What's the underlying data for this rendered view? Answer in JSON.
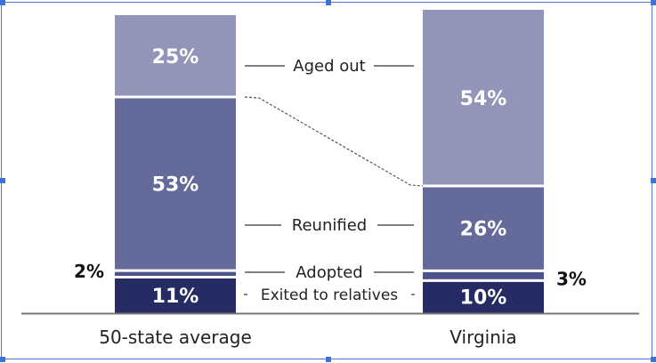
{
  "chart_data": {
    "type": "bar",
    "stacked": true,
    "categories": [
      "50-state average",
      "Virginia"
    ],
    "series": [
      {
        "name": "Exited to relatives",
        "values": [
          11,
          10
        ],
        "color": "#262c63"
      },
      {
        "name": "Adopted",
        "values": [
          2,
          3
        ],
        "color": "#4b548a"
      },
      {
        "name": "Reunified",
        "values": [
          53,
          26
        ],
        "color": "#646a9a"
      },
      {
        "name": "Aged out",
        "values": [
          25,
          54
        ],
        "color": "#9395b8"
      }
    ],
    "data_labels": [
      [
        "11%",
        "2%",
        "53%",
        "25%"
      ],
      [
        "10%",
        "3%",
        "26%",
        "54%"
      ]
    ],
    "middle_labels": [
      "Aged out",
      "Reunified",
      "Adopted",
      "Exited to relatives"
    ],
    "ylim": [
      0,
      100
    ],
    "grid": false,
    "legend": "none"
  }
}
